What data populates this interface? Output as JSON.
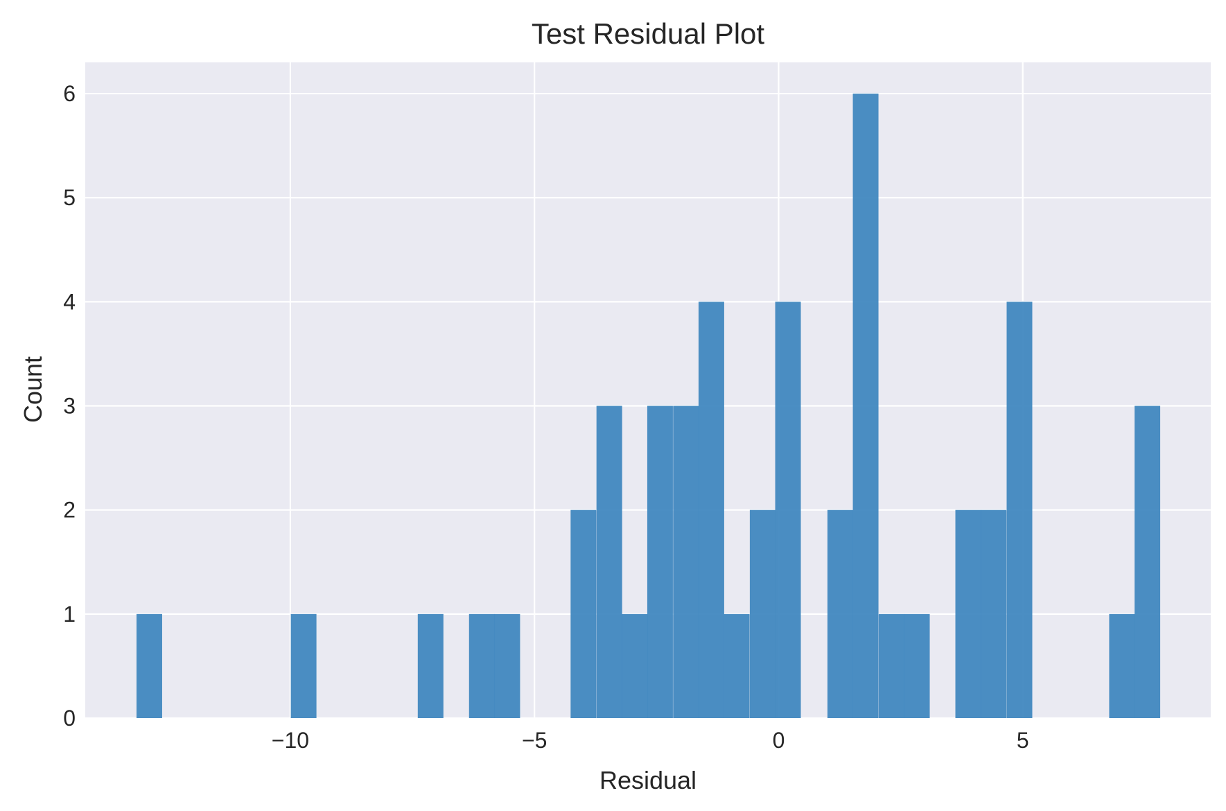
{
  "chart_data": {
    "type": "bar",
    "title": "Test Residual Plot",
    "xlabel": "Residual",
    "ylabel": "Count",
    "xlim": [
      -14.2,
      8.85
    ],
    "ylim": [
      0,
      6.3
    ],
    "xticks": [
      -10,
      -5,
      0,
      5
    ],
    "xtick_labels": [
      "−10",
      "−5",
      "0",
      "5"
    ],
    "yticks": [
      0,
      1,
      2,
      3,
      4,
      5,
      6
    ],
    "ytick_labels": [
      "0",
      "1",
      "2",
      "3",
      "4",
      "5",
      "6"
    ],
    "grid": true,
    "bin_width": 0.525,
    "bins": [
      {
        "x0": -13.15,
        "count": 1
      },
      {
        "x0": -9.99,
        "count": 1
      },
      {
        "x0": -7.39,
        "count": 1
      },
      {
        "x0": -6.34,
        "count": 1
      },
      {
        "x0": -5.82,
        "count": 1
      },
      {
        "x0": -4.26,
        "count": 2
      },
      {
        "x0": -3.73,
        "count": 3
      },
      {
        "x0": -3.21,
        "count": 1
      },
      {
        "x0": -2.69,
        "count": 3
      },
      {
        "x0": -2.16,
        "count": 3
      },
      {
        "x0": -1.64,
        "count": 4
      },
      {
        "x0": -1.12,
        "count": 1
      },
      {
        "x0": -0.59,
        "count": 2
      },
      {
        "x0": -0.07,
        "count": 4
      },
      {
        "x0": 1.0,
        "count": 2
      },
      {
        "x0": 1.52,
        "count": 6
      },
      {
        "x0": 2.05,
        "count": 1
      },
      {
        "x0": 2.57,
        "count": 1
      },
      {
        "x0": 3.62,
        "count": 2
      },
      {
        "x0": 4.14,
        "count": 2
      },
      {
        "x0": 4.67,
        "count": 4
      },
      {
        "x0": 6.77,
        "count": 1
      },
      {
        "x0": 7.29,
        "count": 3
      }
    ],
    "colors": {
      "bar": "#3d85be",
      "plot_background": "#eaeaf2",
      "grid": "#ffffff",
      "text": "#262626"
    }
  }
}
